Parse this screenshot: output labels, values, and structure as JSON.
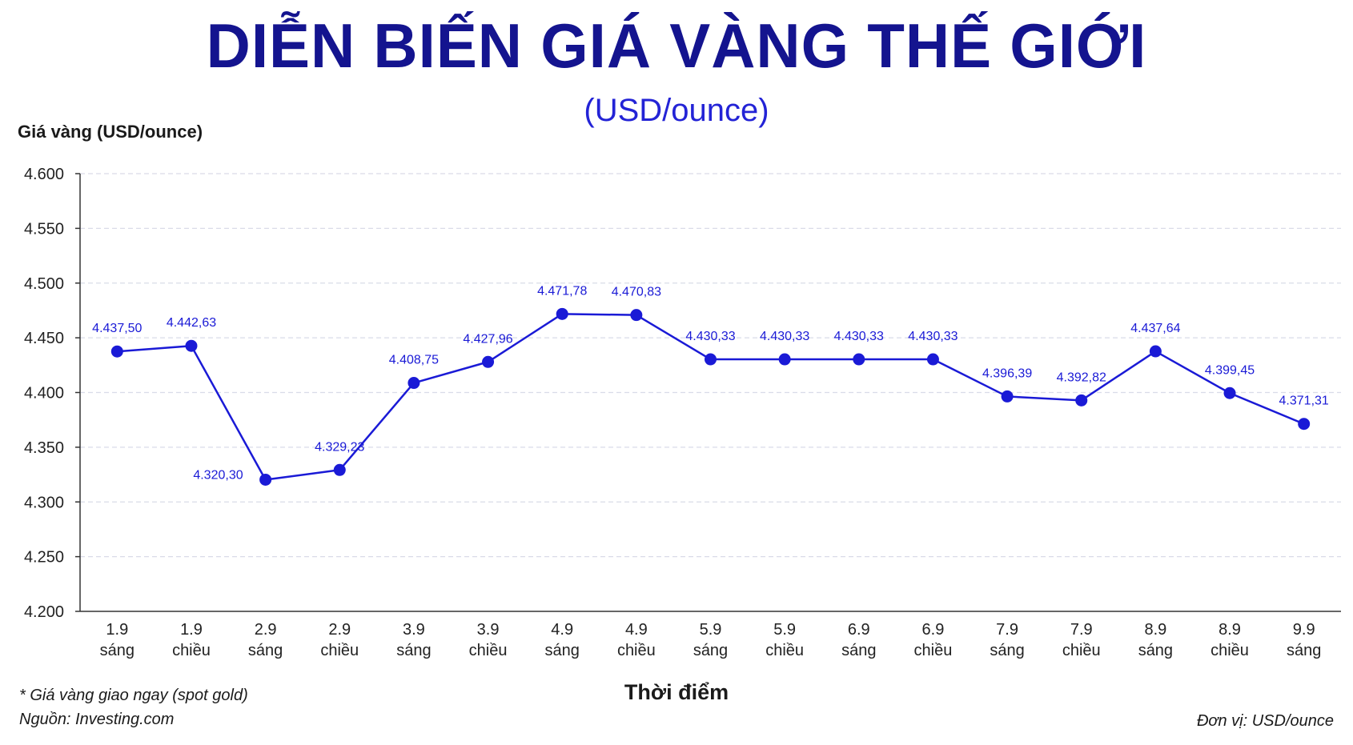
{
  "title": "DIỄN BIẾN GIÁ VÀNG THẾ GIỚI",
  "subtitle": "(USD/ounce)",
  "footnote": "* Giá vàng giao ngay (spot gold)",
  "source": "Nguồn: Investing.com",
  "unit_note": "Đơn vị: USD/ounce",
  "colors": {
    "title": "#14148f",
    "line": "#1a1ad6",
    "grid": "#d9dbe8"
  },
  "chart_data": {
    "type": "line",
    "ylabel": "Giá vàng (USD/ounce)",
    "xlabel": "Thời điểm",
    "ylim": [
      4200,
      4600
    ],
    "yticks": [
      4200,
      4250,
      4300,
      4350,
      4400,
      4450,
      4500,
      4550,
      4600
    ],
    "ytick_labels": [
      "4.200",
      "4.250",
      "4.300",
      "4.350",
      "4.400",
      "4.450",
      "4.500",
      "4.550",
      "4.600"
    ],
    "grid": true,
    "categories": [
      [
        "1.9",
        "sáng"
      ],
      [
        "1.9",
        "chiều"
      ],
      [
        "2.9",
        "sáng"
      ],
      [
        "2.9",
        "chiều"
      ],
      [
        "3.9",
        "sáng"
      ],
      [
        "3.9",
        "chiều"
      ],
      [
        "4.9",
        "sáng"
      ],
      [
        "4.9",
        "chiều"
      ],
      [
        "5.9",
        "sáng"
      ],
      [
        "5.9",
        "chiều"
      ],
      [
        "6.9",
        "sáng"
      ],
      [
        "6.9",
        "chiều"
      ],
      [
        "7.9",
        "sáng"
      ],
      [
        "7.9",
        "chiều"
      ],
      [
        "8.9",
        "sáng"
      ],
      [
        "8.9",
        "chiều"
      ],
      [
        "9.9",
        "sáng"
      ]
    ],
    "series": [
      {
        "values": [
          4437.5,
          4442.63,
          4320.3,
          4329.23,
          4408.75,
          4427.96,
          4471.78,
          4470.83,
          4430.33,
          4430.33,
          4430.33,
          4430.33,
          4396.39,
          4392.82,
          4437.64,
          4399.45,
          4371.31
        ],
        "labels": [
          "4.437,50",
          "4.442,63",
          "4.320,30",
          "4.329,23",
          "4.408,75",
          "4.427,96",
          "4.471,78",
          "4.470,83",
          "4.430,33",
          "4.430,33",
          "4.430,33",
          "4.430,33",
          "4.396,39",
          "4.392,82",
          "4.437,64",
          "4.399,45",
          "4.371,31"
        ]
      }
    ]
  }
}
